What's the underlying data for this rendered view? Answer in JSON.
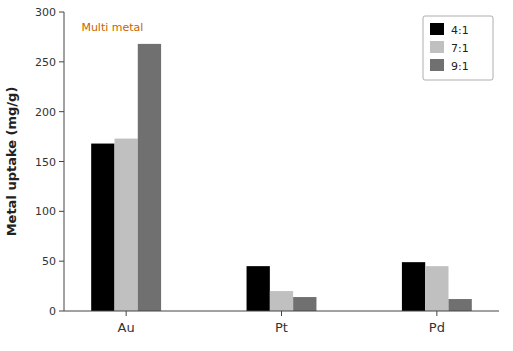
{
  "chart_data": {
    "type": "bar",
    "categories": [
      "Au",
      "Pt",
      "Pd"
    ],
    "series": [
      {
        "name": "4:1",
        "color": "#000000",
        "values": [
          168,
          45,
          49
        ]
      },
      {
        "name": "7:1",
        "color": "#c0c0c0",
        "values": [
          173,
          20,
          45
        ]
      },
      {
        "name": "9:1",
        "color": "#707070",
        "values": [
          268,
          14,
          12
        ]
      }
    ],
    "ylabel": "Metal uptake (mg/g)",
    "annotation": "Multi metal",
    "ylim": [
      0,
      300
    ],
    "yticks": [
      0,
      50,
      100,
      150,
      200,
      250,
      300
    ],
    "grid": false,
    "legend": "upper right"
  }
}
